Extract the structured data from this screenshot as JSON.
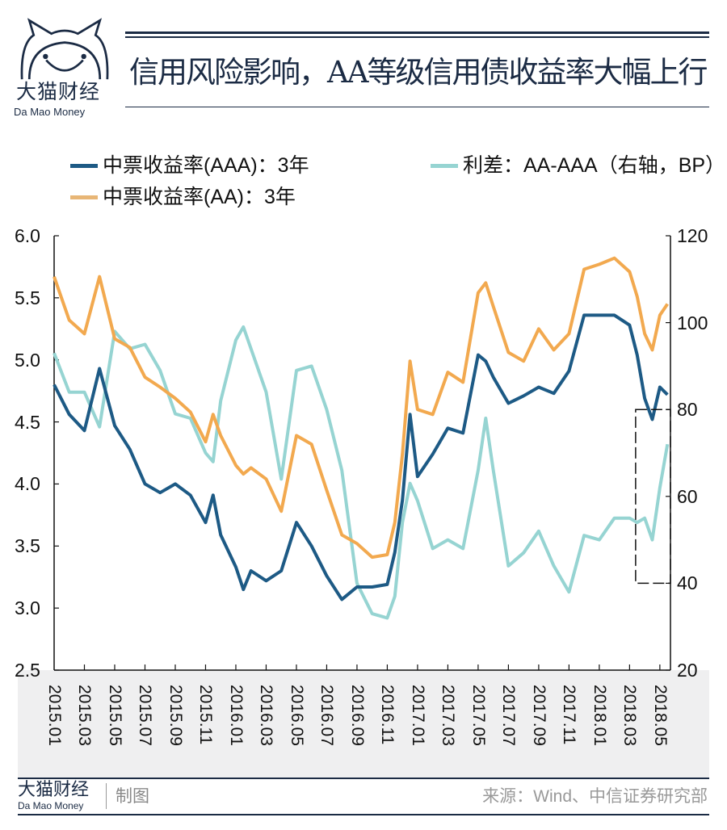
{
  "header": {
    "title": "信用风险影响，AA等级信用债收益率大幅上行",
    "logo_cn": "大猫财经",
    "logo_en": "Da Mao Money"
  },
  "footer": {
    "logo_cn": "大猫财经",
    "logo_en": "Da Mao Money",
    "made_by": "制图",
    "source": "来源：Wind、中信证券研究部"
  },
  "chart_data": {
    "type": "line",
    "title": "信用风险影响，AA等级信用债收益率大幅上行",
    "x_unit": "months since 2015.01",
    "x_ticks": [
      "2015.01",
      "2015.03",
      "2015.05",
      "2015.07",
      "2015.09",
      "2015.11",
      "2016.01",
      "2016.03",
      "2016.05",
      "2016.07",
      "2016.09",
      "2016.11",
      "2017.01",
      "2017.03",
      "2017.05",
      "2017.07",
      "2017.09",
      "2017.11",
      "2018.01",
      "2018.03",
      "2018.05"
    ],
    "xlim": [
      0,
      40.7
    ],
    "left_axis": {
      "ylim": [
        2.5,
        6.0
      ],
      "ticks": [
        "6.0",
        "5.5",
        "5.0",
        "4.5",
        "4.0",
        "3.5",
        "3.0",
        "2.5"
      ]
    },
    "right_axis": {
      "ylim": [
        20,
        120
      ],
      "ticks": [
        "120",
        "100",
        "80",
        "60",
        "40",
        "20"
      ]
    },
    "x": [
      0,
      1,
      2,
      3,
      4,
      5,
      6,
      7,
      8,
      9,
      10,
      10.5,
      11,
      12,
      12.5,
      13,
      14,
      15,
      16,
      17,
      18,
      19,
      20,
      21,
      22,
      22.5,
      23,
      23.5,
      24,
      25,
      26,
      27,
      28,
      28.5,
      29,
      30,
      31,
      32,
      33,
      34,
      35,
      36,
      37,
      38,
      38.5,
      39,
      39.5,
      40,
      40.5
    ],
    "series": [
      {
        "name": "中票收益率(AAA)：3年",
        "axis": "left",
        "color": "#1d5a85",
        "values": [
          4.8,
          4.56,
          4.43,
          4.93,
          4.47,
          4.28,
          4.0,
          3.93,
          4.0,
          3.91,
          3.69,
          3.91,
          3.59,
          3.33,
          3.15,
          3.3,
          3.22,
          3.3,
          3.69,
          3.5,
          3.26,
          3.07,
          3.17,
          3.17,
          3.19,
          3.45,
          3.87,
          4.56,
          4.06,
          4.24,
          4.45,
          4.41,
          5.04,
          4.99,
          4.86,
          4.65,
          4.71,
          4.78,
          4.73,
          4.91,
          5.36,
          5.36,
          5.36,
          5.28,
          5.04,
          4.69,
          4.52,
          4.78,
          4.72
        ]
      },
      {
        "name": "中票收益率(AA)：3年",
        "axis": "left",
        "color": "#f2a94f",
        "values": [
          5.67,
          5.32,
          5.21,
          5.67,
          5.17,
          5.1,
          4.86,
          4.78,
          4.69,
          4.58,
          4.34,
          4.56,
          4.39,
          4.15,
          4.08,
          4.13,
          4.04,
          3.78,
          4.39,
          4.32,
          3.95,
          3.59,
          3.52,
          3.41,
          3.43,
          3.69,
          4.24,
          4.99,
          4.6,
          4.56,
          4.9,
          4.82,
          5.54,
          5.62,
          5.43,
          5.06,
          4.99,
          5.25,
          5.08,
          5.21,
          5.73,
          5.77,
          5.82,
          5.71,
          5.51,
          5.21,
          5.08,
          5.36,
          5.45
        ]
      },
      {
        "name": "利差：AA-AAA（右轴，BP）",
        "axis": "right",
        "color": "#96d4d2",
        "values": [
          93,
          84,
          84,
          76,
          98,
          94,
          95,
          89,
          79,
          78,
          70,
          68,
          82,
          96,
          99,
          94,
          84,
          64,
          89,
          90,
          80,
          66,
          40,
          33,
          32,
          37,
          54,
          63,
          59,
          48,
          50,
          48,
          66,
          78,
          66,
          44,
          47,
          52,
          44,
          38,
          51,
          50,
          55,
          55,
          54,
          55,
          50,
          62,
          72
        ]
      }
    ],
    "legend": {
      "placement": "top",
      "entries": [
        "中票收益率(AAA)：3年",
        "利差：AA-AAA（右轴，BP）",
        "中票收益率(AA)：3年"
      ]
    },
    "annotation_box": {
      "x": [
        38.4,
        40.7
      ],
      "right_y": [
        40,
        80
      ],
      "style": "dashed"
    }
  }
}
